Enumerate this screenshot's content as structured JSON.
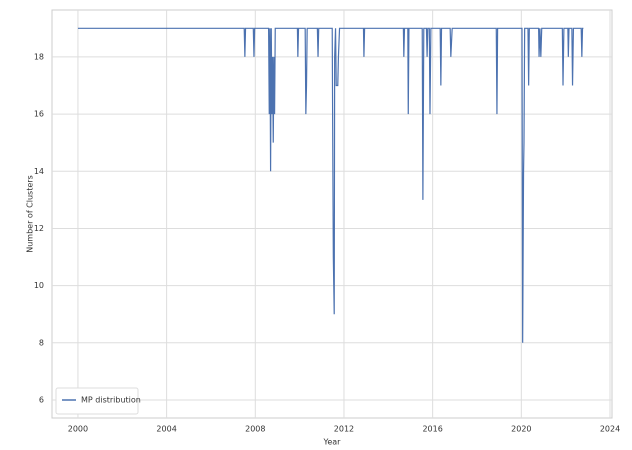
{
  "chart_data": {
    "type": "line",
    "xlabel": "Year",
    "ylabel": "Number of Clusters",
    "xlim": [
      1998.83,
      2024.09
    ],
    "ylim": [
      5.37,
      19.64
    ],
    "xticks": [
      2000,
      2004,
      2008,
      2012,
      2016,
      2020,
      2024
    ],
    "yticks": [
      6,
      8,
      10,
      12,
      14,
      16,
      18
    ],
    "grid": true,
    "legend": "lower left",
    "series": [
      {
        "name": "MP distribution",
        "color": "#4c72b0",
        "x": [
          2000,
          2007.5,
          2007.53,
          2007.56,
          2007.91,
          2007.94,
          2007.97,
          2008.6,
          2008.63,
          2008.66,
          2008.69,
          2008.72,
          2008.75,
          2008.78,
          2008.81,
          2008.84,
          2008.87,
          2008.9,
          2009.9,
          2009.92,
          2009.95,
          2010.25,
          2010.28,
          2010.31,
          2010.34,
          2010.8,
          2010.83,
          2010.86,
          2011.47,
          2011.5,
          2011.52,
          2011.54,
          2011.56,
          2011.58,
          2011.62,
          2011.65,
          2011.72,
          2011.75,
          2011.8,
          2012.88,
          2012.9,
          2012.93,
          2014.68,
          2014.7,
          2014.73,
          2014.88,
          2014.9,
          2014.93,
          2015.53,
          2015.56,
          2015.6,
          2015.72,
          2015.75,
          2015.78,
          2015.85,
          2015.88,
          2015.92,
          2016.34,
          2016.37,
          2016.4,
          2016.79,
          2016.82,
          2016.88,
          2018.87,
          2018.9,
          2018.93,
          2020.03,
          2020.06,
          2020.08,
          2020.1,
          2020.12,
          2020.15,
          2020.3,
          2020.33,
          2020.36,
          2020.78,
          2020.8,
          2020.84,
          2020.88,
          2020.92,
          2021.85,
          2021.88,
          2021.92,
          2022.1,
          2022.12,
          2022.15,
          2022.28,
          2022.31,
          2022.35,
          2022.7,
          2022.73,
          2022.76,
          2022.8
        ],
        "values": [
          19,
          19,
          18,
          19,
          19,
          18,
          19,
          19,
          16,
          19,
          14,
          19,
          16,
          18,
          15,
          18,
          16,
          19,
          19,
          18,
          19,
          19,
          16,
          17,
          19,
          19,
          18,
          19,
          19,
          14,
          11,
          10,
          9,
          18,
          19,
          17,
          17,
          18,
          19,
          19,
          18,
          19,
          19,
          18,
          19,
          19,
          16,
          19,
          19,
          13,
          19,
          19,
          18,
          19,
          19,
          16,
          19,
          19,
          17,
          19,
          19,
          18,
          19,
          19,
          16,
          19,
          19,
          8,
          11,
          14,
          15,
          19,
          19,
          17,
          19,
          19,
          18,
          19,
          18,
          19,
          19,
          17,
          19,
          19,
          18,
          19,
          19,
          17,
          19,
          19,
          18,
          19,
          19
        ]
      }
    ]
  }
}
